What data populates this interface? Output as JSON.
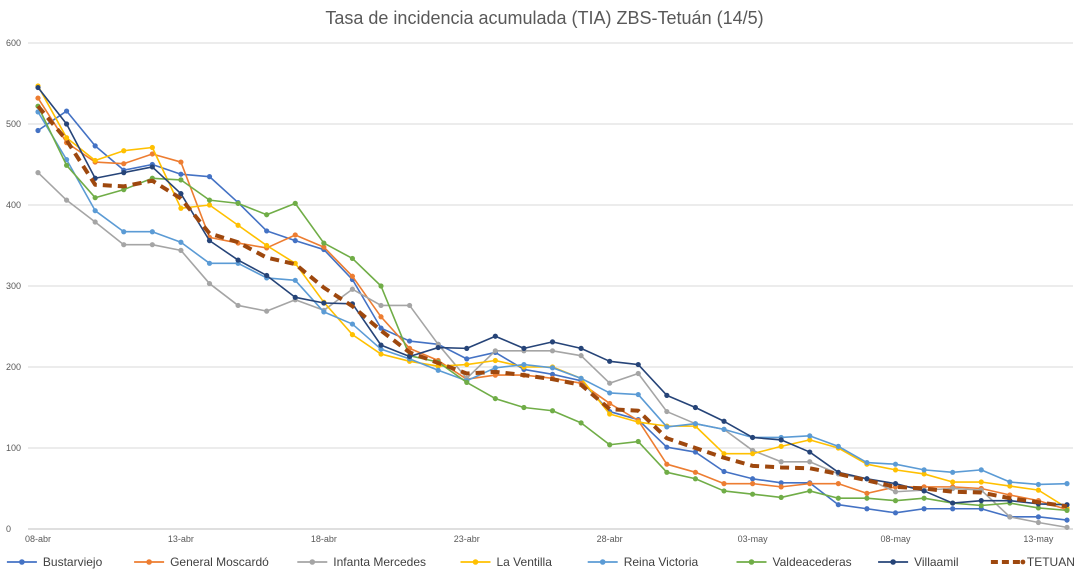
{
  "chart_data": {
    "type": "line",
    "title": "Tasa de incidencia acumulada (TIA) ZBS-Tetuán (14/5)",
    "xlabel": "",
    "ylabel": "",
    "ylim": [
      0,
      600
    ],
    "yticks": [
      "0",
      "100",
      "200",
      "300",
      "400",
      "500",
      "600"
    ],
    "x": [
      "08-abr",
      "09-abr",
      "10-abr",
      "11-abr",
      "12-abr",
      "13-abr",
      "14-abr",
      "15-abr",
      "16-abr",
      "17-abr",
      "18-abr",
      "19-abr",
      "20-abr",
      "21-abr",
      "22-abr",
      "23-abr",
      "24-abr",
      "25-abr",
      "26-abr",
      "27-abr",
      "28-abr",
      "29-abr",
      "30-abr",
      "01-may",
      "02-may",
      "03-may",
      "04-may",
      "05-may",
      "06-may",
      "07-may",
      "08-may",
      "09-may",
      "10-may",
      "11-may",
      "12-may",
      "13-may",
      "14-may"
    ],
    "xtick_labels": [
      "08-abr",
      "13-abr",
      "18-abr",
      "23-abr",
      "28-abr",
      "03-may",
      "08-may",
      "13-may"
    ],
    "grid": true,
    "legend_position": "bottom",
    "series": [
      {
        "name": "Bustarviejo",
        "color": "#4472C4",
        "dashed": false,
        "values": [
          492,
          516,
          473,
          443,
          450,
          438,
          435,
          403,
          368,
          356,
          345,
          308,
          248,
          232,
          228,
          210,
          218,
          197,
          191,
          183,
          145,
          135,
          101,
          95,
          71,
          62,
          57,
          57,
          30,
          25,
          20,
          25,
          25,
          25,
          15,
          15,
          11
        ]
      },
      {
        "name": "General Moscardó",
        "color": "#ED7D31",
        "dashed": false,
        "values": [
          532,
          477,
          453,
          451,
          463,
          453,
          360,
          353,
          347,
          363,
          348,
          312,
          262,
          223,
          208,
          185,
          190,
          190,
          186,
          180,
          155,
          134,
          80,
          70,
          56,
          56,
          52,
          56,
          56,
          44,
          52,
          52,
          52,
          50,
          42,
          35,
          24
        ]
      },
      {
        "name": "Infanta Mercedes",
        "color": "#A5A5A5",
        "dashed": false,
        "values": [
          440,
          406,
          379,
          351,
          351,
          344,
          303,
          276,
          269,
          283,
          270,
          296,
          276,
          276,
          228,
          186,
          220,
          220,
          220,
          214,
          180,
          192,
          145,
          130,
          123,
          97,
          83,
          83,
          68,
          62,
          46,
          48,
          50,
          48,
          15,
          8,
          2
        ]
      },
      {
        "name": "La Ventilla",
        "color": "#FFC000",
        "dashed": false,
        "values": [
          547,
          483,
          455,
          467,
          471,
          396,
          400,
          375,
          350,
          328,
          280,
          240,
          216,
          207,
          201,
          203,
          208,
          200,
          200,
          186,
          142,
          132,
          127,
          127,
          93,
          93,
          102,
          110,
          100,
          80,
          73,
          68,
          58,
          58,
          53,
          48,
          26
        ]
      },
      {
        "name": "Reina Victoria",
        "color": "#5B9BD5",
        "dashed": false,
        "values": [
          515,
          456,
          393,
          367,
          367,
          354,
          328,
          328,
          310,
          307,
          268,
          253,
          222,
          210,
          196,
          183,
          199,
          203,
          199,
          186,
          168,
          166,
          126,
          130,
          123,
          113,
          113,
          115,
          102,
          82,
          80,
          73,
          70,
          73,
          58,
          55,
          56
        ]
      },
      {
        "name": "Valdeacederas",
        "color": "#70AD47",
        "dashed": false,
        "values": [
          522,
          449,
          409,
          419,
          433,
          431,
          406,
          402,
          388,
          402,
          353,
          334,
          300,
          214,
          206,
          181,
          161,
          150,
          146,
          131,
          104,
          108,
          70,
          62,
          47,
          43,
          39,
          47,
          38,
          38,
          35,
          38,
          32,
          29,
          32,
          26,
          23
        ]
      },
      {
        "name": "Villaamil",
        "color": "#264478",
        "dashed": false,
        "values": [
          545,
          500,
          433,
          440,
          447,
          414,
          356,
          332,
          313,
          286,
          279,
          278,
          227,
          213,
          224,
          223,
          238,
          223,
          231,
          223,
          207,
          203,
          165,
          150,
          133,
          113,
          110,
          95,
          70,
          62,
          56,
          47,
          32,
          35,
          35,
          31,
          30
        ]
      },
      {
        "name": "TETUAN",
        "color": "#9E480E",
        "dashed": true,
        "values": [
          522,
          480,
          425,
          423,
          430,
          408,
          365,
          354,
          335,
          327,
          298,
          275,
          245,
          218,
          205,
          192,
          194,
          190,
          185,
          178,
          148,
          146,
          112,
          100,
          88,
          78,
          76,
          75,
          68,
          60,
          52,
          50,
          46,
          45,
          38,
          33,
          28
        ]
      }
    ]
  }
}
